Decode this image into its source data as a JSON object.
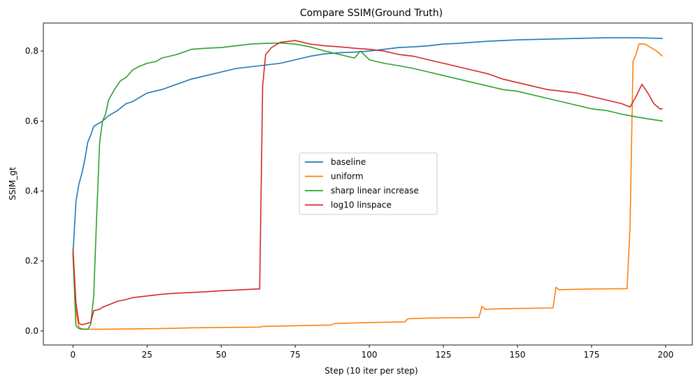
{
  "chart_data": {
    "type": "line",
    "title": "Compare SSIM(Ground Truth)",
    "xlabel": "Step (10 iter per step)",
    "ylabel": "SSIM_gt",
    "xlim": [
      -10,
      209
    ],
    "ylim": [
      -0.04,
      0.88
    ],
    "xticks": [
      0,
      25,
      50,
      75,
      100,
      125,
      150,
      175,
      200
    ],
    "yticks": [
      0.0,
      0.2,
      0.4,
      0.6,
      0.8
    ],
    "xtick_labels": [
      "0",
      "25",
      "50",
      "75",
      "100",
      "125",
      "150",
      "175",
      "200"
    ],
    "ytick_labels": [
      "0.0",
      "0.2",
      "0.4",
      "0.6",
      "0.8"
    ],
    "grid": false,
    "legend_position": "center",
    "series": [
      {
        "name": "baseline",
        "color": "#1f77b4",
        "points": [
          [
            0,
            0.22
          ],
          [
            1,
            0.37
          ],
          [
            2,
            0.42
          ],
          [
            3,
            0.45
          ],
          [
            4,
            0.49
          ],
          [
            5,
            0.54
          ],
          [
            6,
            0.56
          ],
          [
            7,
            0.585
          ],
          [
            8,
            0.59
          ],
          [
            10,
            0.6
          ],
          [
            12,
            0.615
          ],
          [
            15,
            0.63
          ],
          [
            18,
            0.65
          ],
          [
            20,
            0.655
          ],
          [
            22,
            0.665
          ],
          [
            25,
            0.68
          ],
          [
            30,
            0.69
          ],
          [
            35,
            0.705
          ],
          [
            40,
            0.72
          ],
          [
            45,
            0.73
          ],
          [
            50,
            0.74
          ],
          [
            55,
            0.75
          ],
          [
            60,
            0.755
          ],
          [
            63,
            0.758
          ],
          [
            65,
            0.76
          ],
          [
            70,
            0.765
          ],
          [
            75,
            0.775
          ],
          [
            80,
            0.785
          ],
          [
            85,
            0.792
          ],
          [
            90,
            0.795
          ],
          [
            95,
            0.797
          ],
          [
            100,
            0.8
          ],
          [
            105,
            0.805
          ],
          [
            110,
            0.81
          ],
          [
            115,
            0.812
          ],
          [
            120,
            0.815
          ],
          [
            125,
            0.82
          ],
          [
            130,
            0.822
          ],
          [
            135,
            0.825
          ],
          [
            140,
            0.828
          ],
          [
            145,
            0.83
          ],
          [
            150,
            0.832
          ],
          [
            155,
            0.833
          ],
          [
            160,
            0.834
          ],
          [
            165,
            0.835
          ],
          [
            170,
            0.836
          ],
          [
            175,
            0.837
          ],
          [
            180,
            0.838
          ],
          [
            185,
            0.838
          ],
          [
            190,
            0.838
          ],
          [
            195,
            0.837
          ],
          [
            199,
            0.836
          ]
        ]
      },
      {
        "name": "uniform",
        "color": "#ff7f0e",
        "points": [
          [
            0,
            0.22
          ],
          [
            1,
            0.06
          ],
          [
            2,
            0.01
          ],
          [
            3,
            0.006
          ],
          [
            5,
            0.005
          ],
          [
            10,
            0.005
          ],
          [
            20,
            0.006
          ],
          [
            30,
            0.007
          ],
          [
            40,
            0.009
          ],
          [
            50,
            0.01
          ],
          [
            63,
            0.011
          ],
          [
            64,
            0.013
          ],
          [
            70,
            0.014
          ],
          [
            80,
            0.016
          ],
          [
            87,
            0.017
          ],
          [
            88,
            0.021
          ],
          [
            95,
            0.023
          ],
          [
            105,
            0.025
          ],
          [
            112,
            0.026
          ],
          [
            113,
            0.035
          ],
          [
            120,
            0.037
          ],
          [
            130,
            0.038
          ],
          [
            137,
            0.039
          ],
          [
            138,
            0.07
          ],
          [
            139,
            0.062
          ],
          [
            145,
            0.064
          ],
          [
            155,
            0.065
          ],
          [
            162,
            0.066
          ],
          [
            163,
            0.125
          ],
          [
            164,
            0.118
          ],
          [
            175,
            0.12
          ],
          [
            187,
            0.121
          ],
          [
            188,
            0.3
          ],
          [
            189,
            0.77
          ],
          [
            190,
            0.79
          ],
          [
            191,
            0.82
          ],
          [
            193,
            0.82
          ],
          [
            195,
            0.81
          ],
          [
            197,
            0.8
          ],
          [
            199,
            0.785
          ]
        ]
      },
      {
        "name": "sharp linear increase",
        "color": "#2ca02c",
        "points": [
          [
            0,
            0.22
          ],
          [
            1,
            0.015
          ],
          [
            2,
            0.007
          ],
          [
            3,
            0.005
          ],
          [
            5,
            0.005
          ],
          [
            6,
            0.02
          ],
          [
            7,
            0.1
          ],
          [
            8,
            0.33
          ],
          [
            9,
            0.54
          ],
          [
            10,
            0.6
          ],
          [
            11,
            0.62
          ],
          [
            12,
            0.66
          ],
          [
            14,
            0.69
          ],
          [
            16,
            0.715
          ],
          [
            18,
            0.725
          ],
          [
            20,
            0.745
          ],
          [
            22,
            0.755
          ],
          [
            25,
            0.765
          ],
          [
            28,
            0.77
          ],
          [
            30,
            0.78
          ],
          [
            35,
            0.79
          ],
          [
            40,
            0.805
          ],
          [
            45,
            0.808
          ],
          [
            50,
            0.81
          ],
          [
            55,
            0.815
          ],
          [
            60,
            0.82
          ],
          [
            65,
            0.822
          ],
          [
            70,
            0.823
          ],
          [
            75,
            0.82
          ],
          [
            80,
            0.812
          ],
          [
            85,
            0.8
          ],
          [
            90,
            0.79
          ],
          [
            95,
            0.78
          ],
          [
            97,
            0.8
          ],
          [
            100,
            0.775
          ],
          [
            105,
            0.765
          ],
          [
            110,
            0.758
          ],
          [
            115,
            0.75
          ],
          [
            120,
            0.74
          ],
          [
            125,
            0.73
          ],
          [
            130,
            0.72
          ],
          [
            135,
            0.71
          ],
          [
            140,
            0.7
          ],
          [
            145,
            0.69
          ],
          [
            150,
            0.685
          ],
          [
            155,
            0.675
          ],
          [
            160,
            0.665
          ],
          [
            165,
            0.655
          ],
          [
            170,
            0.645
          ],
          [
            175,
            0.635
          ],
          [
            180,
            0.63
          ],
          [
            185,
            0.62
          ],
          [
            190,
            0.612
          ],
          [
            195,
            0.605
          ],
          [
            199,
            0.6
          ]
        ]
      },
      {
        "name": "log10 linspace",
        "color": "#d62728",
        "points": [
          [
            0,
            0.235
          ],
          [
            1,
            0.08
          ],
          [
            2,
            0.022
          ],
          [
            3,
            0.018
          ],
          [
            5,
            0.022
          ],
          [
            6,
            0.025
          ],
          [
            7,
            0.058
          ],
          [
            9,
            0.062
          ],
          [
            10,
            0.068
          ],
          [
            13,
            0.078
          ],
          [
            15,
            0.085
          ],
          [
            18,
            0.09
          ],
          [
            20,
            0.095
          ],
          [
            25,
            0.1
          ],
          [
            30,
            0.105
          ],
          [
            35,
            0.108
          ],
          [
            40,
            0.11
          ],
          [
            45,
            0.112
          ],
          [
            50,
            0.115
          ],
          [
            55,
            0.117
          ],
          [
            62,
            0.12
          ],
          [
            63,
            0.12
          ],
          [
            64,
            0.7
          ],
          [
            65,
            0.79
          ],
          [
            67,
            0.81
          ],
          [
            70,
            0.825
          ],
          [
            75,
            0.83
          ],
          [
            80,
            0.82
          ],
          [
            85,
            0.815
          ],
          [
            90,
            0.812
          ],
          [
            95,
            0.808
          ],
          [
            100,
            0.805
          ],
          [
            105,
            0.8
          ],
          [
            110,
            0.79
          ],
          [
            115,
            0.785
          ],
          [
            120,
            0.775
          ],
          [
            125,
            0.765
          ],
          [
            130,
            0.755
          ],
          [
            135,
            0.745
          ],
          [
            140,
            0.735
          ],
          [
            145,
            0.72
          ],
          [
            150,
            0.71
          ],
          [
            155,
            0.7
          ],
          [
            160,
            0.69
          ],
          [
            165,
            0.685
          ],
          [
            170,
            0.68
          ],
          [
            175,
            0.67
          ],
          [
            180,
            0.66
          ],
          [
            185,
            0.65
          ],
          [
            188,
            0.64
          ],
          [
            190,
            0.67
          ],
          [
            192,
            0.705
          ],
          [
            194,
            0.68
          ],
          [
            196,
            0.65
          ],
          [
            198,
            0.635
          ],
          [
            199,
            0.635
          ]
        ]
      }
    ]
  }
}
